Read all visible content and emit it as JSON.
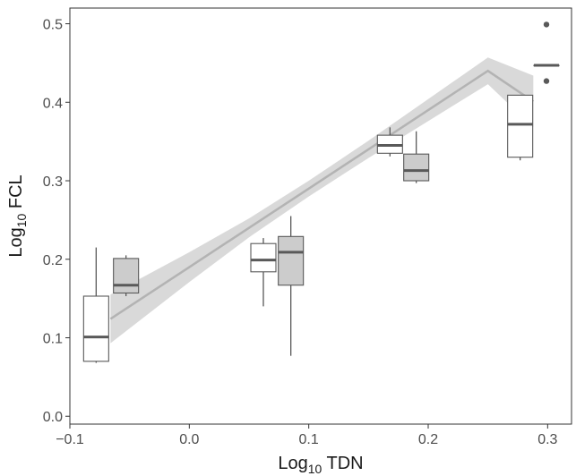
{
  "chart_data": {
    "type": "box",
    "xlabel": {
      "main": "Log",
      "sub": "10",
      "rest": " TDN"
    },
    "ylabel": {
      "main": "Log",
      "sub": "10",
      "rest": " FCL"
    },
    "xlim": [
      -0.1,
      0.32
    ],
    "ylim": [
      -0.01,
      0.52
    ],
    "xticks": [
      -0.1,
      0.0,
      0.1,
      0.2,
      0.3
    ],
    "xtick_labels": [
      "−0.1",
      "0.0",
      "0.1",
      "0.2",
      "0.3"
    ],
    "yticks": [
      0.0,
      0.1,
      0.2,
      0.3,
      0.4,
      0.5
    ],
    "ytick_labels": [
      "0.0",
      "0.1",
      "0.2",
      "0.3",
      "0.4",
      "0.5"
    ],
    "grid": false,
    "colors": {
      "box_white": "#ffffff",
      "box_grey": "#cccccc",
      "box_stroke": "#595959",
      "median": "#595959",
      "band": "#d9d9d9",
      "fit_line": "#b3b3b3",
      "outlier": "#595959",
      "axis": "#333333"
    },
    "boxes": [
      {
        "x": -0.078,
        "fill": "white",
        "min": 0.068,
        "q1": 0.07,
        "median": 0.101,
        "q3": 0.153,
        "max": 0.215
      },
      {
        "x": -0.053,
        "fill": "grey",
        "min": 0.153,
        "q1": 0.157,
        "median": 0.167,
        "q3": 0.201,
        "max": 0.205
      },
      {
        "x": 0.062,
        "fill": "white",
        "min": 0.14,
        "q1": 0.184,
        "median": 0.199,
        "q3": 0.22,
        "max": 0.227
      },
      {
        "x": 0.085,
        "fill": "grey",
        "min": 0.077,
        "q1": 0.167,
        "median": 0.209,
        "q3": 0.229,
        "max": 0.255
      },
      {
        "x": 0.168,
        "fill": "white",
        "min": 0.331,
        "q1": 0.335,
        "median": 0.345,
        "q3": 0.358,
        "max": 0.368
      },
      {
        "x": 0.19,
        "fill": "grey",
        "min": 0.297,
        "q1": 0.3,
        "median": 0.313,
        "q3": 0.334,
        "max": 0.363
      },
      {
        "x": 0.277,
        "fill": "white",
        "min": 0.326,
        "q1": 0.33,
        "median": 0.372,
        "q3": 0.409,
        "max": 0.409
      },
      {
        "x": 0.299,
        "fill": "grey",
        "min": 0.447,
        "q1": 0.447,
        "median": 0.447,
        "q3": 0.447,
        "max": 0.447
      }
    ],
    "outliers": [
      {
        "x": 0.299,
        "y": 0.499
      },
      {
        "x": 0.299,
        "y": 0.427
      }
    ],
    "fit": {
      "x": [
        -0.066,
        0.0,
        0.05,
        0.1,
        0.15,
        0.2,
        0.25,
        0.288
      ],
      "y": [
        0.124,
        0.19,
        0.24,
        0.29,
        0.34,
        0.39,
        0.44,
        0.401
      ],
      "band_lower": [
        0.093,
        0.171,
        0.228,
        0.28,
        0.329,
        0.376,
        0.423,
        0.368
      ],
      "band_upper": [
        0.155,
        0.209,
        0.252,
        0.3,
        0.351,
        0.404,
        0.457,
        0.434
      ]
    }
  }
}
